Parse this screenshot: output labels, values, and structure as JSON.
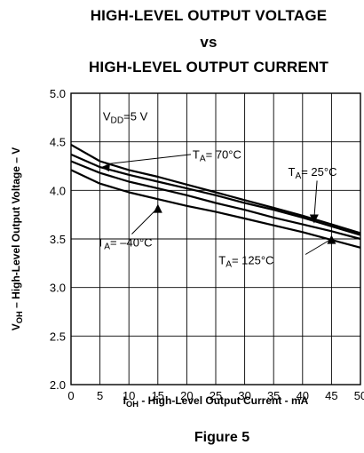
{
  "title_lines": [
    "HIGH-LEVEL OUTPUT VOLTAGE",
    "vs",
    "HIGH-LEVEL OUTPUT CURRENT"
  ],
  "figure_caption": "Figure 5",
  "chart_data": {
    "type": "line",
    "xlabel": {
      "main": "I",
      "sub": "OH",
      "rest": " - High-Level Output Current - mA"
    },
    "ylabel": {
      "main": "V",
      "sub": "OH",
      "rest": " – High-Level Output Voltage – V"
    },
    "xlim": [
      0,
      50
    ],
    "ylim": [
      2.0,
      5.0
    ],
    "x_ticks": [
      0,
      5,
      10,
      15,
      20,
      25,
      30,
      35,
      40,
      45,
      50
    ],
    "y_ticks": [
      2.0,
      2.5,
      3.0,
      3.5,
      4.0,
      4.5,
      5.0
    ],
    "x_tick_labels": [
      "0",
      "5",
      "10",
      "15",
      "20",
      "25",
      "30",
      "35",
      "40",
      "45",
      "50"
    ],
    "y_tick_labels": [
      "2.0",
      "2.5",
      "3.0",
      "3.5",
      "4.0",
      "4.5",
      "5.0"
    ],
    "grid": true,
    "condition": {
      "main": "V",
      "sub": "DD",
      "rest": "=5 V"
    },
    "series": [
      {
        "name": "TA = –40°C",
        "label_main": "T",
        "label_sub": "A",
        "label_rest": "= –40°C",
        "x": [
          0,
          5,
          10,
          15,
          20,
          25,
          30,
          35,
          40,
          45,
          50
        ],
        "y": [
          4.21,
          4.07,
          3.98,
          3.91,
          3.84,
          3.78,
          3.71,
          3.64,
          3.57,
          3.49,
          3.41
        ]
      },
      {
        "name": "TA = 25°C",
        "label_main": "T",
        "label_sub": "A",
        "label_rest": "= 25°C",
        "x": [
          0,
          5,
          10,
          15,
          20,
          25,
          30,
          35,
          40,
          45,
          50
        ],
        "y": [
          4.3,
          4.18,
          4.09,
          4.02,
          3.95,
          3.87,
          3.8,
          3.72,
          3.65,
          3.58,
          3.5
        ]
      },
      {
        "name": "TA = 70°C",
        "label_main": "T",
        "label_sub": "A",
        "label_rest": "= 70°C",
        "x": [
          0,
          5,
          10,
          15,
          20,
          25,
          30,
          35,
          40,
          45,
          50
        ],
        "y": [
          4.37,
          4.24,
          4.16,
          4.09,
          4.02,
          3.95,
          3.87,
          3.8,
          3.72,
          3.63,
          3.54
        ]
      },
      {
        "name": "TA = 125°C",
        "label_main": "T",
        "label_sub": "A",
        "label_rest": "= 125°C",
        "x": [
          0,
          5,
          10,
          15,
          20,
          25,
          30,
          35,
          40,
          45,
          50
        ],
        "y": [
          4.47,
          4.3,
          4.21,
          4.14,
          4.06,
          3.98,
          3.9,
          3.82,
          3.74,
          3.65,
          3.56
        ]
      }
    ]
  }
}
